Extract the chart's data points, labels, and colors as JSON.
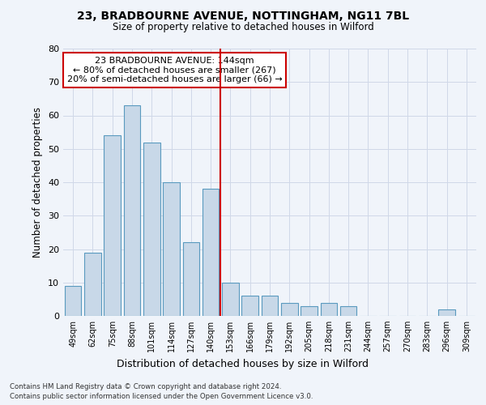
{
  "title1": "23, BRADBOURNE AVENUE, NOTTINGHAM, NG11 7BL",
  "title2": "Size of property relative to detached houses in Wilford",
  "xlabel": "Distribution of detached houses by size in Wilford",
  "ylabel": "Number of detached properties",
  "categories": [
    "49sqm",
    "62sqm",
    "75sqm",
    "88sqm",
    "101sqm",
    "114sqm",
    "127sqm",
    "140sqm",
    "153sqm",
    "166sqm",
    "179sqm",
    "192sqm",
    "205sqm",
    "218sqm",
    "231sqm",
    "244sqm",
    "257sqm",
    "270sqm",
    "283sqm",
    "296sqm",
    "309sqm"
  ],
  "values": [
    9,
    19,
    54,
    63,
    52,
    40,
    22,
    38,
    10,
    6,
    6,
    4,
    3,
    4,
    3,
    0,
    0,
    0,
    0,
    2,
    0
  ],
  "bar_color": "#c8d8e8",
  "bar_edge_color": "#5a9abf",
  "vline_x": 7.5,
  "vline_color": "#cc0000",
  "annotation_text": "23 BRADBOURNE AVENUE: 144sqm\n← 80% of detached houses are smaller (267)\n20% of semi-detached houses are larger (66) →",
  "annotation_box_color": "#cc0000",
  "ylim": [
    0,
    80
  ],
  "yticks": [
    0,
    10,
    20,
    30,
    40,
    50,
    60,
    70,
    80
  ],
  "grid_color": "#d0d8e8",
  "background_color": "#f0f4fa",
  "footer1": "Contains HM Land Registry data © Crown copyright and database right 2024.",
  "footer2": "Contains public sector information licensed under the Open Government Licence v3.0."
}
